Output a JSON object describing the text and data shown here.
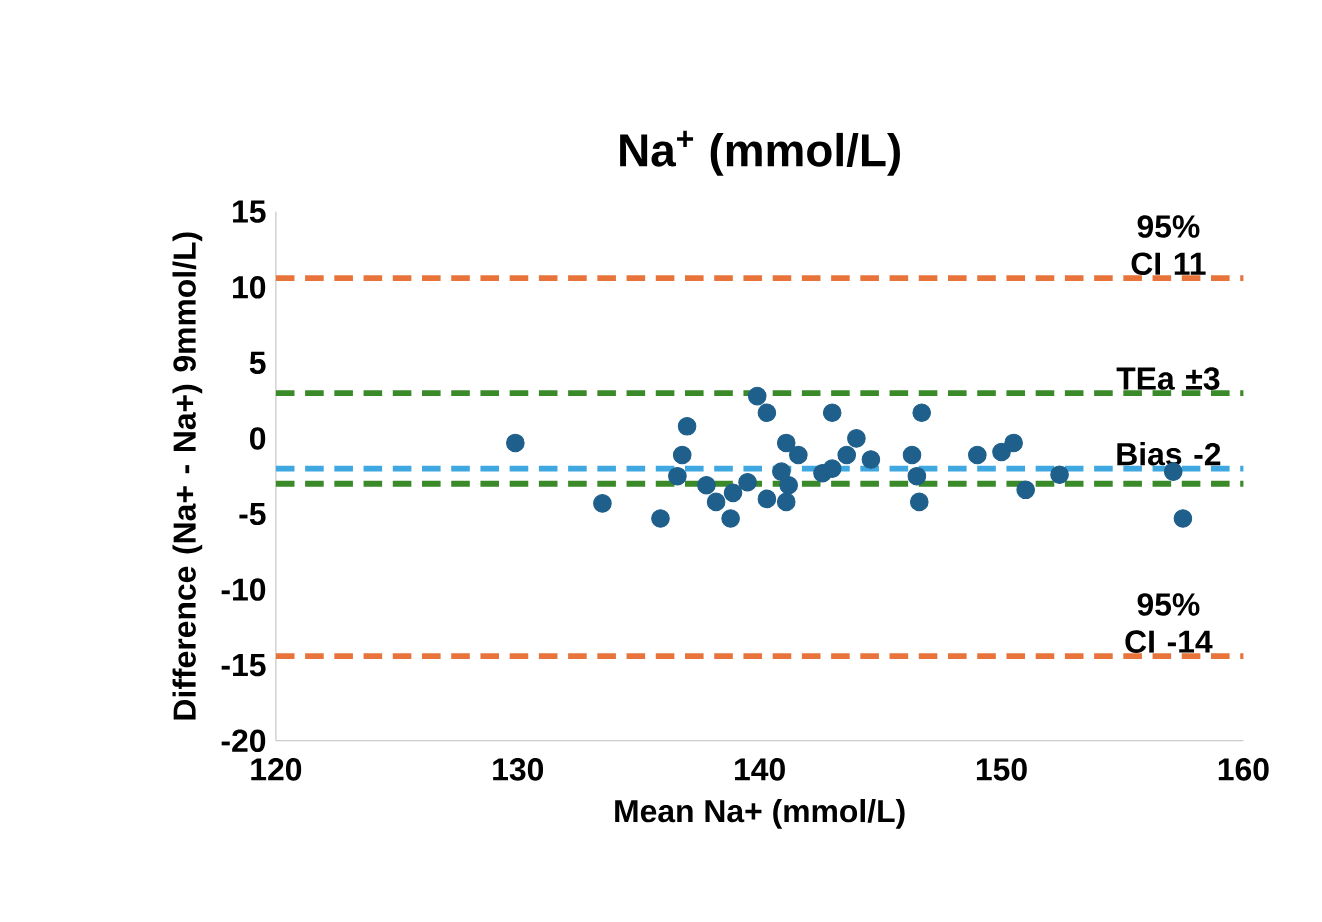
{
  "chart_data": {
    "type": "scatter",
    "title": "Na$^{+}$ (mmol/L)",
    "xlabel": "Mean Na+ (mmol/L)",
    "ylabel": "Difference (Na+ - Na+) 9mmol/L)",
    "x": [
      129.9,
      133.5,
      135.9,
      137.0,
      136.8,
      136.6,
      137.8,
      138.2,
      138.8,
      138.9,
      139.5,
      139.9,
      140.3,
      140.3,
      141.1,
      141.2,
      141.1,
      141.6,
      140.9,
      142.6,
      143.0,
      143.0,
      143.6,
      144.0,
      144.6,
      146.3,
      146.5,
      146.6,
      146.7,
      149.0,
      150.0,
      150.5,
      151.0,
      152.4,
      157.1,
      157.5
    ],
    "values": [
      -0.3,
      -4.3,
      -5.3,
      0.8,
      -1.1,
      -2.5,
      -3.1,
      -4.2,
      -5.3,
      -3.6,
      -2.9,
      2.8,
      1.7,
      -4.0,
      -4.2,
      -3.1,
      -0.3,
      -1.1,
      -2.2,
      -2.3,
      1.7,
      -2.0,
      -1.1,
      0.0,
      -1.4,
      -1.1,
      -2.5,
      -4.2,
      1.7,
      -1.1,
      -0.9,
      -0.3,
      -3.4,
      -2.4,
      -2.2,
      -5.3
    ],
    "color": "#1f5f8b",
    "marker": "circle",
    "xlim": [
      120,
      160
    ],
    "xticks": [
      120,
      130,
      140,
      150,
      160
    ],
    "ylim": [
      -20,
      15
    ],
    "yticks": [
      -20,
      -15,
      -10,
      -5,
      0,
      5,
      10,
      15
    ],
    "grid": false,
    "ref_lines": [
      {
        "axis": "y",
        "value": 10.6,
        "label": "95% CI 11",
        "color": "#e8743b",
        "line_style": "dashed"
      },
      {
        "axis": "y",
        "value": 3,
        "label": "TEa ±3",
        "color": "#3a8a2a",
        "line_style": "dashed"
      },
      {
        "axis": "y",
        "value": -2,
        "label": "Bias -2",
        "color": "#3fa8e0",
        "line_style": "dashed"
      },
      {
        "axis": "y",
        "value": -3,
        "label": null,
        "color": "#3a8a2a",
        "line_style": "dashed"
      },
      {
        "axis": "y",
        "value": -14.4,
        "label": "95% CI -14",
        "color": "#e8743b",
        "line_style": "dashed"
      }
    ]
  }
}
